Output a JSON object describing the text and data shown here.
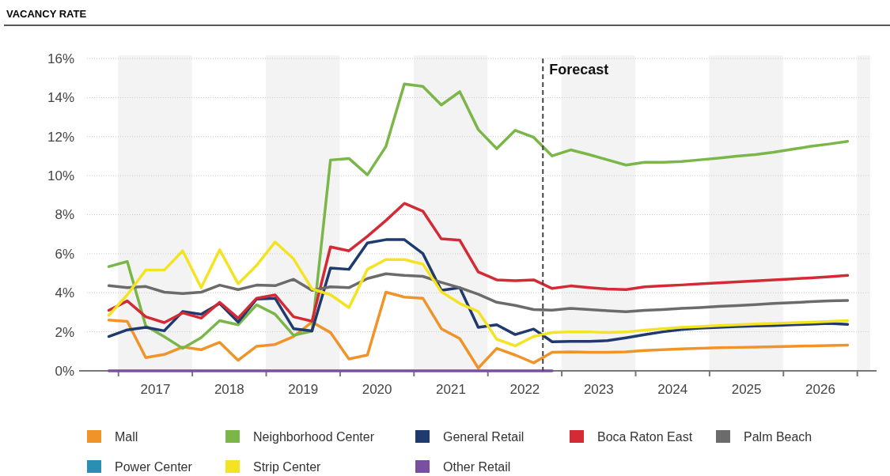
{
  "chart_data": {
    "type": "line",
    "title": "VACANCY RATE",
    "x": [
      2016.875,
      2017.125,
      2017.375,
      2017.625,
      2017.875,
      2018.125,
      2018.375,
      2018.625,
      2018.875,
      2019.125,
      2019.375,
      2019.625,
      2019.875,
      2020.125,
      2020.375,
      2020.625,
      2020.875,
      2021.125,
      2021.375,
      2021.625,
      2021.875,
      2022.125,
      2022.375,
      2022.625,
      2022.875,
      2023.125,
      2023.375,
      2023.625,
      2023.875,
      2024.125,
      2024.375,
      2024.625,
      2024.875,
      2025.125,
      2025.375,
      2025.625,
      2025.875,
      2026.125,
      2026.375,
      2026.625,
      2026.875
    ],
    "xlim": [
      2016.58,
      2027.18
    ],
    "xticks": [
      {
        "value": 2017,
        "label": null
      },
      {
        "value": 2017.5,
        "label": "2017"
      },
      {
        "value": 2018,
        "label": null
      },
      {
        "value": 2018.5,
        "label": "2018"
      },
      {
        "value": 2019,
        "label": null
      },
      {
        "value": 2019.5,
        "label": "2019"
      },
      {
        "value": 2020,
        "label": null
      },
      {
        "value": 2020.5,
        "label": "2020"
      },
      {
        "value": 2021,
        "label": null
      },
      {
        "value": 2021.5,
        "label": "2021"
      },
      {
        "value": 2022,
        "label": null
      },
      {
        "value": 2022.5,
        "label": "2022"
      },
      {
        "value": 2023,
        "label": null
      },
      {
        "value": 2023.5,
        "label": "2023"
      },
      {
        "value": 2024,
        "label": null
      },
      {
        "value": 2024.5,
        "label": "2024"
      },
      {
        "value": 2025,
        "label": null
      },
      {
        "value": 2025.5,
        "label": "2025"
      },
      {
        "value": 2026,
        "label": null
      },
      {
        "value": 2026.5,
        "label": "2026"
      },
      {
        "value": 2027,
        "label": null
      }
    ],
    "ylim": [
      0,
      16
    ],
    "yticks": [
      {
        "value": 0,
        "label": "0%"
      },
      {
        "value": 2,
        "label": "2%"
      },
      {
        "value": 4,
        "label": "4%"
      },
      {
        "value": 6,
        "label": "6%"
      },
      {
        "value": 8,
        "label": "8%"
      },
      {
        "value": 10,
        "label": "10%"
      },
      {
        "value": 12,
        "label": "12%"
      },
      {
        "value": 14,
        "label": "14%"
      },
      {
        "value": 16,
        "label": "16%"
      }
    ],
    "grid": "y",
    "legend": "bottom",
    "bands": [
      {
        "axis": "x",
        "from": 2017,
        "to": 2018,
        "label": null,
        "color": "#f3f3f4"
      },
      {
        "axis": "x",
        "from": 2019,
        "to": 2020,
        "label": null,
        "color": "#f3f3f4"
      },
      {
        "axis": "x",
        "from": 2021,
        "to": 2022,
        "label": null,
        "color": "#f3f3f4"
      },
      {
        "axis": "x",
        "from": 2023,
        "to": 2024,
        "label": null,
        "color": "#f3f3f4"
      },
      {
        "axis": "x",
        "from": 2025,
        "to": 2026,
        "label": null,
        "color": "#f3f3f4"
      },
      {
        "axis": "x",
        "from": 2027,
        "to": 2027.18,
        "label": null,
        "color": "#f3f3f4"
      }
    ],
    "ref_lines": [
      {
        "axis": "x",
        "value": 2022.75,
        "label": "Forecast",
        "color": "#444444",
        "line_style": "dashed"
      }
    ],
    "series": [
      {
        "name": "Mall",
        "color": "#f0942a",
        "values": [
          2.6,
          2.53,
          0.68,
          0.84,
          1.22,
          1.08,
          1.46,
          0.54,
          1.26,
          1.35,
          1.76,
          2.5,
          1.96,
          0.61,
          0.81,
          4.03,
          3.78,
          3.72,
          2.16,
          1.65,
          0.14,
          1.15,
          0.81,
          0.41,
          0.95,
          0.97,
          0.95,
          0.95,
          0.97,
          1.04,
          1.08,
          1.12,
          1.15,
          1.18,
          1.2,
          1.22,
          1.24,
          1.26,
          1.28,
          1.3,
          1.32
        ]
      },
      {
        "name": "Neighborhood Center",
        "color": "#7ab648",
        "values": [
          5.34,
          5.6,
          2.3,
          1.75,
          1.15,
          1.7,
          2.57,
          2.36,
          3.38,
          2.9,
          1.82,
          2.03,
          10.8,
          10.88,
          10.04,
          11.49,
          14.69,
          14.57,
          13.62,
          14.3,
          12.36,
          11.38,
          12.32,
          11.96,
          11.01,
          11.32,
          11.08,
          10.81,
          10.54,
          10.68,
          10.68,
          10.72,
          10.81,
          10.9,
          11.0,
          11.08,
          11.2,
          11.35,
          11.5,
          11.62,
          11.76
        ]
      },
      {
        "name": "General Retail",
        "color": "#1f3a6e",
        "values": [
          1.76,
          2.1,
          2.23,
          2.05,
          3.04,
          2.9,
          3.45,
          2.5,
          3.68,
          3.72,
          2.16,
          2.05,
          5.27,
          5.2,
          6.55,
          6.72,
          6.72,
          6.01,
          4.12,
          4.26,
          2.23,
          2.36,
          1.86,
          2.14,
          1.49,
          1.51,
          1.51,
          1.55,
          1.69,
          1.85,
          2.0,
          2.12,
          2.19,
          2.23,
          2.27,
          2.3,
          2.32,
          2.36,
          2.39,
          2.43,
          2.38
        ]
      },
      {
        "name": "Boca Raton East",
        "color": "#d42a35",
        "values": [
          3.1,
          3.58,
          2.77,
          2.47,
          2.97,
          2.7,
          3.51,
          2.7,
          3.72,
          3.89,
          2.77,
          2.54,
          6.35,
          6.15,
          6.89,
          7.7,
          8.58,
          8.18,
          6.76,
          6.69,
          5.07,
          4.66,
          4.62,
          4.66,
          4.22,
          4.35,
          4.26,
          4.19,
          4.16,
          4.3,
          4.35,
          4.4,
          4.46,
          4.51,
          4.56,
          4.61,
          4.66,
          4.71,
          4.76,
          4.82,
          4.89
        ]
      },
      {
        "name": "Palm Beach",
        "color": "#6b6b6b",
        "values": [
          4.36,
          4.26,
          4.32,
          4.03,
          3.96,
          4.03,
          4.39,
          4.16,
          4.39,
          4.36,
          4.69,
          4.12,
          4.3,
          4.26,
          4.73,
          4.97,
          4.89,
          4.84,
          4.53,
          4.26,
          3.92,
          3.51,
          3.35,
          3.14,
          3.11,
          3.2,
          3.14,
          3.08,
          3.03,
          3.1,
          3.14,
          3.2,
          3.24,
          3.3,
          3.34,
          3.39,
          3.45,
          3.49,
          3.54,
          3.58,
          3.61
        ]
      },
      {
        "name": "Power Center",
        "color": "#2a8fb0",
        "values": [
          null,
          null,
          null,
          null,
          null,
          null,
          null,
          null,
          null,
          null,
          null,
          null,
          null,
          null,
          null,
          null,
          null,
          null,
          null,
          null,
          null,
          null,
          null,
          null,
          null,
          null,
          null,
          null,
          null,
          null,
          null,
          null,
          null,
          null,
          null,
          null,
          null,
          null,
          null,
          null,
          null
        ]
      },
      {
        "name": "Strip Center",
        "color": "#f4e322",
        "values": [
          2.84,
          3.9,
          5.16,
          5.16,
          6.15,
          4.26,
          6.2,
          4.46,
          5.4,
          6.6,
          5.74,
          4.2,
          3.9,
          3.24,
          5.2,
          5.7,
          5.7,
          5.47,
          4.05,
          3.45,
          3.04,
          1.62,
          1.28,
          1.76,
          1.96,
          2.0,
          2.0,
          1.96,
          1.99,
          2.09,
          2.16,
          2.23,
          2.27,
          2.32,
          2.36,
          2.4,
          2.43,
          2.46,
          2.49,
          2.53,
          2.57
        ]
      },
      {
        "name": "Other Retail",
        "color": "#7a4fa0",
        "values": [
          0,
          0,
          0,
          0,
          0,
          0,
          0,
          0,
          0,
          0,
          0,
          0,
          0,
          0,
          0,
          0,
          0,
          0,
          0,
          0,
          0,
          0,
          0,
          0,
          0,
          null,
          null,
          null,
          null,
          null,
          null,
          null,
          null,
          null,
          null,
          null,
          null,
          null,
          null,
          null,
          null
        ]
      }
    ]
  }
}
